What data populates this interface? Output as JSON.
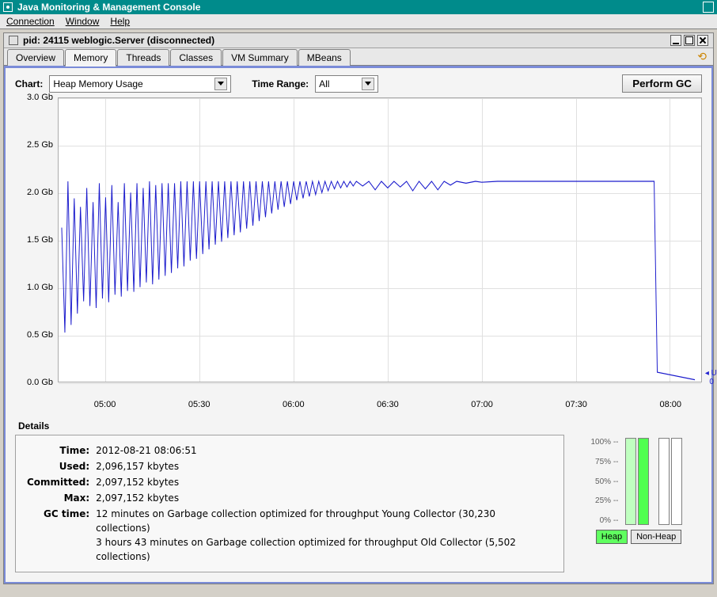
{
  "window": {
    "title": "Java Monitoring & Management Console"
  },
  "menus": {
    "connection": "Connection",
    "window": "Window",
    "help": "Help"
  },
  "subwindow": {
    "title": "pid: 24115 weblogic.Server (disconnected)"
  },
  "tabs": {
    "items": [
      "Overview",
      "Memory",
      "Threads",
      "Classes",
      "VM Summary",
      "MBeans"
    ],
    "active_index": 1
  },
  "controls": {
    "chart_label": "Chart:",
    "chart_value": "Heap Memory Usage",
    "timerange_label": "Time Range:",
    "timerange_value": "All",
    "gc_button": "Perform GC"
  },
  "chart": {
    "type": "line",
    "line_color": "#1a1acc",
    "background_color": "#ffffff",
    "grid_color": "#e0e0e0",
    "ylim": [
      0.0,
      3.0
    ],
    "yticks": [
      0.0,
      0.5,
      1.0,
      1.5,
      2.0,
      2.5,
      3.0
    ],
    "ytick_labels": [
      "0.0 Gb",
      "0.5 Gb",
      "1.0 Gb",
      "1.5 Gb",
      "2.0 Gb",
      "2.5 Gb",
      "3.0 Gb"
    ],
    "xticks": [
      60,
      90,
      120,
      150,
      180,
      210,
      240
    ],
    "xtick_labels": [
      "05:00",
      "05:30",
      "06:00",
      "06:30",
      "07:00",
      "07:30",
      "08:00"
    ],
    "xrange": [
      45,
      250
    ],
    "legend": {
      "label": "Used",
      "value": "0"
    },
    "series": [
      {
        "x": 46,
        "y": 1.63
      },
      {
        "x": 47,
        "y": 0.52
      },
      {
        "x": 48,
        "y": 2.12
      },
      {
        "x": 49,
        "y": 0.6
      },
      {
        "x": 50,
        "y": 1.94
      },
      {
        "x": 51,
        "y": 0.72
      },
      {
        "x": 52,
        "y": 1.85
      },
      {
        "x": 53,
        "y": 0.85
      },
      {
        "x": 54,
        "y": 2.05
      },
      {
        "x": 55,
        "y": 0.8
      },
      {
        "x": 56,
        "y": 1.9
      },
      {
        "x": 57,
        "y": 0.78
      },
      {
        "x": 58,
        "y": 2.1
      },
      {
        "x": 59,
        "y": 0.88
      },
      {
        "x": 60,
        "y": 1.95
      },
      {
        "x": 61,
        "y": 0.84
      },
      {
        "x": 62,
        "y": 2.08
      },
      {
        "x": 63,
        "y": 0.92
      },
      {
        "x": 64,
        "y": 1.9
      },
      {
        "x": 65,
        "y": 0.9
      },
      {
        "x": 66,
        "y": 2.1
      },
      {
        "x": 67,
        "y": 0.96
      },
      {
        "x": 68,
        "y": 2.0
      },
      {
        "x": 69,
        "y": 0.95
      },
      {
        "x": 70,
        "y": 2.1
      },
      {
        "x": 71,
        "y": 1.0
      },
      {
        "x": 72,
        "y": 2.05
      },
      {
        "x": 73,
        "y": 1.05
      },
      {
        "x": 74,
        "y": 2.12
      },
      {
        "x": 75,
        "y": 1.03
      },
      {
        "x": 76,
        "y": 2.08
      },
      {
        "x": 77,
        "y": 1.08
      },
      {
        "x": 78,
        "y": 2.1
      },
      {
        "x": 79,
        "y": 1.12
      },
      {
        "x": 80,
        "y": 2.1
      },
      {
        "x": 81,
        "y": 1.15
      },
      {
        "x": 82,
        "y": 2.1
      },
      {
        "x": 83,
        "y": 1.2
      },
      {
        "x": 84,
        "y": 2.12
      },
      {
        "x": 85,
        "y": 1.22
      },
      {
        "x": 86,
        "y": 2.12
      },
      {
        "x": 87,
        "y": 1.28
      },
      {
        "x": 88,
        "y": 2.12
      },
      {
        "x": 89,
        "y": 1.3
      },
      {
        "x": 90,
        "y": 2.12
      },
      {
        "x": 91,
        "y": 1.35
      },
      {
        "x": 92,
        "y": 2.12
      },
      {
        "x": 93,
        "y": 1.4
      },
      {
        "x": 94,
        "y": 2.12
      },
      {
        "x": 95,
        "y": 1.45
      },
      {
        "x": 96,
        "y": 2.12
      },
      {
        "x": 97,
        "y": 1.48
      },
      {
        "x": 98,
        "y": 2.12
      },
      {
        "x": 99,
        "y": 1.52
      },
      {
        "x": 100,
        "y": 2.12
      },
      {
        "x": 101,
        "y": 1.55
      },
      {
        "x": 102,
        "y": 2.12
      },
      {
        "x": 103,
        "y": 1.58
      },
      {
        "x": 104,
        "y": 2.12
      },
      {
        "x": 105,
        "y": 1.62
      },
      {
        "x": 106,
        "y": 2.12
      },
      {
        "x": 107,
        "y": 1.65
      },
      {
        "x": 108,
        "y": 2.12
      },
      {
        "x": 109,
        "y": 1.7
      },
      {
        "x": 110,
        "y": 2.12
      },
      {
        "x": 111,
        "y": 1.74
      },
      {
        "x": 112,
        "y": 2.12
      },
      {
        "x": 113,
        "y": 1.78
      },
      {
        "x": 114,
        "y": 2.12
      },
      {
        "x": 115,
        "y": 1.82
      },
      {
        "x": 116,
        "y": 2.12
      },
      {
        "x": 117,
        "y": 1.85
      },
      {
        "x": 118,
        "y": 2.12
      },
      {
        "x": 119,
        "y": 1.88
      },
      {
        "x": 120,
        "y": 2.12
      },
      {
        "x": 121,
        "y": 1.92
      },
      {
        "x": 122,
        "y": 2.12
      },
      {
        "x": 123,
        "y": 1.94
      },
      {
        "x": 124,
        "y": 2.12
      },
      {
        "x": 125,
        "y": 1.96
      },
      {
        "x": 126,
        "y": 2.12
      },
      {
        "x": 127,
        "y": 1.98
      },
      {
        "x": 128,
        "y": 2.12
      },
      {
        "x": 129,
        "y": 2.0
      },
      {
        "x": 130,
        "y": 2.12
      },
      {
        "x": 131,
        "y": 2.02
      },
      {
        "x": 132,
        "y": 2.12
      },
      {
        "x": 133,
        "y": 2.04
      },
      {
        "x": 134,
        "y": 2.12
      },
      {
        "x": 135,
        "y": 2.05
      },
      {
        "x": 136,
        "y": 2.12
      },
      {
        "x": 137,
        "y": 2.06
      },
      {
        "x": 138,
        "y": 2.12
      },
      {
        "x": 139,
        "y": 2.07
      },
      {
        "x": 140,
        "y": 2.12
      },
      {
        "x": 142,
        "y": 2.07
      },
      {
        "x": 144,
        "y": 2.12
      },
      {
        "x": 146,
        "y": 2.03
      },
      {
        "x": 148,
        "y": 2.12
      },
      {
        "x": 150,
        "y": 2.05
      },
      {
        "x": 152,
        "y": 2.12
      },
      {
        "x": 154,
        "y": 2.06
      },
      {
        "x": 156,
        "y": 2.12
      },
      {
        "x": 158,
        "y": 2.02
      },
      {
        "x": 160,
        "y": 2.12
      },
      {
        "x": 162,
        "y": 2.04
      },
      {
        "x": 164,
        "y": 2.12
      },
      {
        "x": 166,
        "y": 2.03
      },
      {
        "x": 168,
        "y": 2.12
      },
      {
        "x": 170,
        "y": 2.08
      },
      {
        "x": 172,
        "y": 2.12
      },
      {
        "x": 175,
        "y": 2.1
      },
      {
        "x": 178,
        "y": 2.12
      },
      {
        "x": 180,
        "y": 2.11
      },
      {
        "x": 185,
        "y": 2.12
      },
      {
        "x": 190,
        "y": 2.12
      },
      {
        "x": 195,
        "y": 2.12
      },
      {
        "x": 200,
        "y": 2.12
      },
      {
        "x": 210,
        "y": 2.12
      },
      {
        "x": 220,
        "y": 2.12
      },
      {
        "x": 230,
        "y": 2.12
      },
      {
        "x": 234,
        "y": 2.12
      },
      {
        "x": 235,
        "y": 2.12
      },
      {
        "x": 236,
        "y": 0.1
      },
      {
        "x": 248,
        "y": 0.02
      }
    ]
  },
  "details": {
    "section_label": "Details",
    "rows": [
      {
        "label": "Time:",
        "value": "2012-08-21 08:06:51"
      },
      {
        "label": "Used:",
        "value": "2,096,157 kbytes"
      },
      {
        "label": "Committed:",
        "value": "2,097,152 kbytes"
      },
      {
        "label": "Max:",
        "value": "2,097,152 kbytes"
      },
      {
        "label": "GC time:",
        "value": "12 minutes on Garbage collection optimized for throughput Young Collector (30,230 collections)\n3 hours 43 minutes on Garbage collection optimized for throughput Old Collector (5,502 collections)"
      }
    ]
  },
  "usage": {
    "scale": [
      "100% --",
      "75% --",
      "50% --",
      "25% --",
      "0% --"
    ],
    "heap_btn": "Heap",
    "nonheap_btn": "Non-Heap",
    "bars": [
      {
        "fill_pct": 100,
        "color": "#c0ffc0"
      },
      {
        "fill_pct": 100,
        "color": "#50ff50"
      },
      {
        "fill_pct": 0,
        "color": "#e8e8e8"
      },
      {
        "fill_pct": 0,
        "color": "#e8e8e8"
      }
    ]
  }
}
